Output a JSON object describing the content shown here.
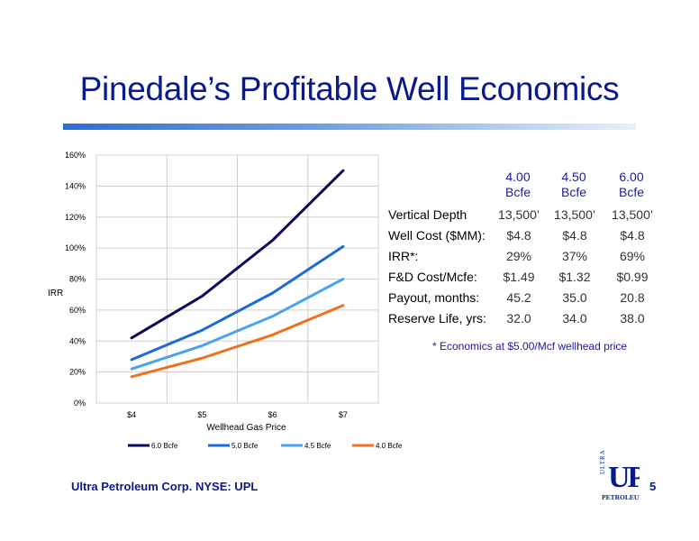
{
  "slide": {
    "title": "Pinedale’s Profitable Well Economics",
    "footer": "Ultra Petroleum Corp. NYSE: UPL",
    "page_number": "5"
  },
  "logo": {
    "letters": "UP",
    "side_text": "ULTRA",
    "bottom_text": "PETROLEUM",
    "color": "#0a1a8c"
  },
  "chart_data": {
    "type": "line",
    "xlabel": "Wellhead Gas Price",
    "ylabel": "IRR",
    "categories": [
      "$4",
      "$5",
      "$6",
      "$7"
    ],
    "y_ticks": [
      "0%",
      "20%",
      "40%",
      "60%",
      "80%",
      "100%",
      "120%",
      "140%",
      "160%"
    ],
    "ylim": [
      0,
      160
    ],
    "grid": true,
    "legend_position": "bottom",
    "series": [
      {
        "name": "6.0 Bcfe",
        "color": "#0a0a5c",
        "values": [
          42,
          69,
          105,
          150
        ]
      },
      {
        "name": "5.0 Bcfe",
        "color": "#1a6ad8",
        "values": [
          28,
          47,
          71,
          101
        ]
      },
      {
        "name": "4.5 Bcfe",
        "color": "#4aa3ee",
        "values": [
          22,
          37,
          56,
          80
        ]
      },
      {
        "name": "4.0 Bcfe",
        "color": "#f07020",
        "values": [
          17,
          29,
          44,
          63
        ]
      }
    ]
  },
  "table": {
    "headers": [
      {
        "line1": "4.00",
        "line2": "Bcfe"
      },
      {
        "line1": "4.50",
        "line2": "Bcfe"
      },
      {
        "line1": "6.00",
        "line2": "Bcfe"
      }
    ],
    "rows": [
      {
        "label": "Vertical Depth",
        "values": [
          "13,500’",
          "13,500’",
          "13,500’"
        ]
      },
      {
        "label": "Well Cost ($MM):",
        "values": [
          "$4.8",
          "$4.8",
          "$4.8"
        ]
      },
      {
        "label": "IRR*:",
        "values": [
          "29%",
          "37%",
          "69%"
        ]
      },
      {
        "label": "F&D Cost/Mcfe:",
        "values": [
          "$1.49",
          "$1.32",
          "$0.99"
        ]
      },
      {
        "label": "Payout, months:",
        "values": [
          "45.2",
          "35.0",
          "20.8"
        ]
      },
      {
        "label": "Reserve Life, yrs:",
        "values": [
          "32.0",
          "34.0",
          "38.0"
        ]
      }
    ],
    "footnote": "* Economics at $5.00/Mcf wellhead price"
  }
}
